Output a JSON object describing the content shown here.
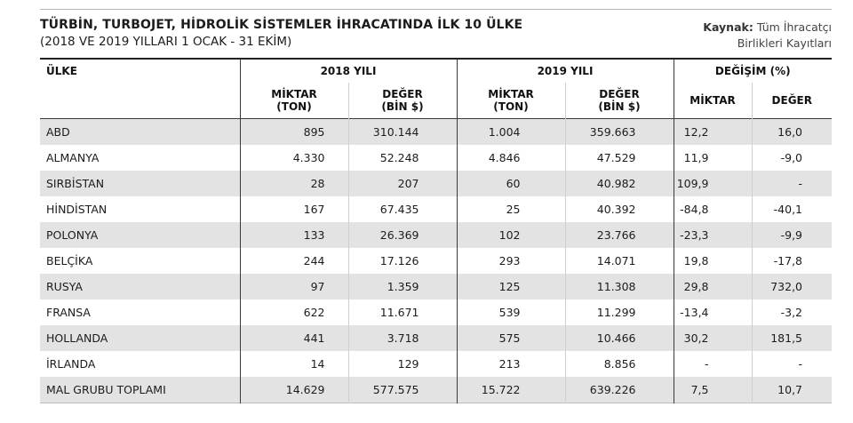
{
  "header": {
    "title": "TÜRBİN, TURBOJET, HİDROLİK SİSTEMLER İHRACATINDA İLK 10 ÜLKE",
    "subtitle": "(2018 VE 2019 YILLARI 1 OCAK - 31 EKİM)",
    "source_label": "Kaynak:",
    "source_line1": "Tüm İhracatçı",
    "source_line2": "Birlikleri Kayıtları"
  },
  "table": {
    "col_country": "ÜLKE",
    "group_2018": "2018 YILI",
    "group_2019": "2019 YILI",
    "group_change": "DEĞİŞİM (%)",
    "qty_l1": "MİKTAR",
    "qty_l2": "(TON)",
    "val_l1": "DEĞER",
    "val_l2": "(BİN $)",
    "chg_qty": "MİKTAR",
    "chg_val": "DEĞER",
    "rows": [
      {
        "country": "ABD",
        "q2018": "895",
        "v2018": "310.144",
        "q2019": "1.004",
        "v2019": "359.663",
        "cq": "12,2",
        "cv": "16,0"
      },
      {
        "country": "ALMANYA",
        "q2018": "4.330",
        "v2018": "52.248",
        "q2019": "4.846",
        "v2019": "47.529",
        "cq": "11,9",
        "cv": "-9,0"
      },
      {
        "country": "SIRBİSTAN",
        "q2018": "28",
        "v2018": "207",
        "q2019": "60",
        "v2019": "40.982",
        "cq": "109,9",
        "cv": "-"
      },
      {
        "country": "HİNDİSTAN",
        "q2018": "167",
        "v2018": "67.435",
        "q2019": "25",
        "v2019": "40.392",
        "cq": "-84,8",
        "cv": "-40,1"
      },
      {
        "country": "POLONYA",
        "q2018": "133",
        "v2018": "26.369",
        "q2019": "102",
        "v2019": "23.766",
        "cq": "-23,3",
        "cv": "-9,9"
      },
      {
        "country": "BELÇİKA",
        "q2018": "244",
        "v2018": "17.126",
        "q2019": "293",
        "v2019": "14.071",
        "cq": "19,8",
        "cv": "-17,8"
      },
      {
        "country": "RUSYA",
        "q2018": "97",
        "v2018": "1.359",
        "q2019": "125",
        "v2019": "11.308",
        "cq": "29,8",
        "cv": "732,0"
      },
      {
        "country": "FRANSA",
        "q2018": "622",
        "v2018": "11.671",
        "q2019": "539",
        "v2019": "11.299",
        "cq": "-13,4",
        "cv": "-3,2"
      },
      {
        "country": "HOLLANDA",
        "q2018": "441",
        "v2018": "3.718",
        "q2019": "575",
        "v2019": "10.466",
        "cq": "30,2",
        "cv": "181,5"
      },
      {
        "country": "İRLANDA",
        "q2018": "14",
        "v2018": "129",
        "q2019": "213",
        "v2019": "8.856",
        "cq": "-",
        "cv": "-"
      },
      {
        "country": "MAL GRUBU TOPLAMI",
        "q2018": "14.629",
        "v2018": "577.575",
        "q2019": "15.722",
        "v2019": "639.226",
        "cq": "7,5",
        "cv": "10,7"
      }
    ]
  }
}
